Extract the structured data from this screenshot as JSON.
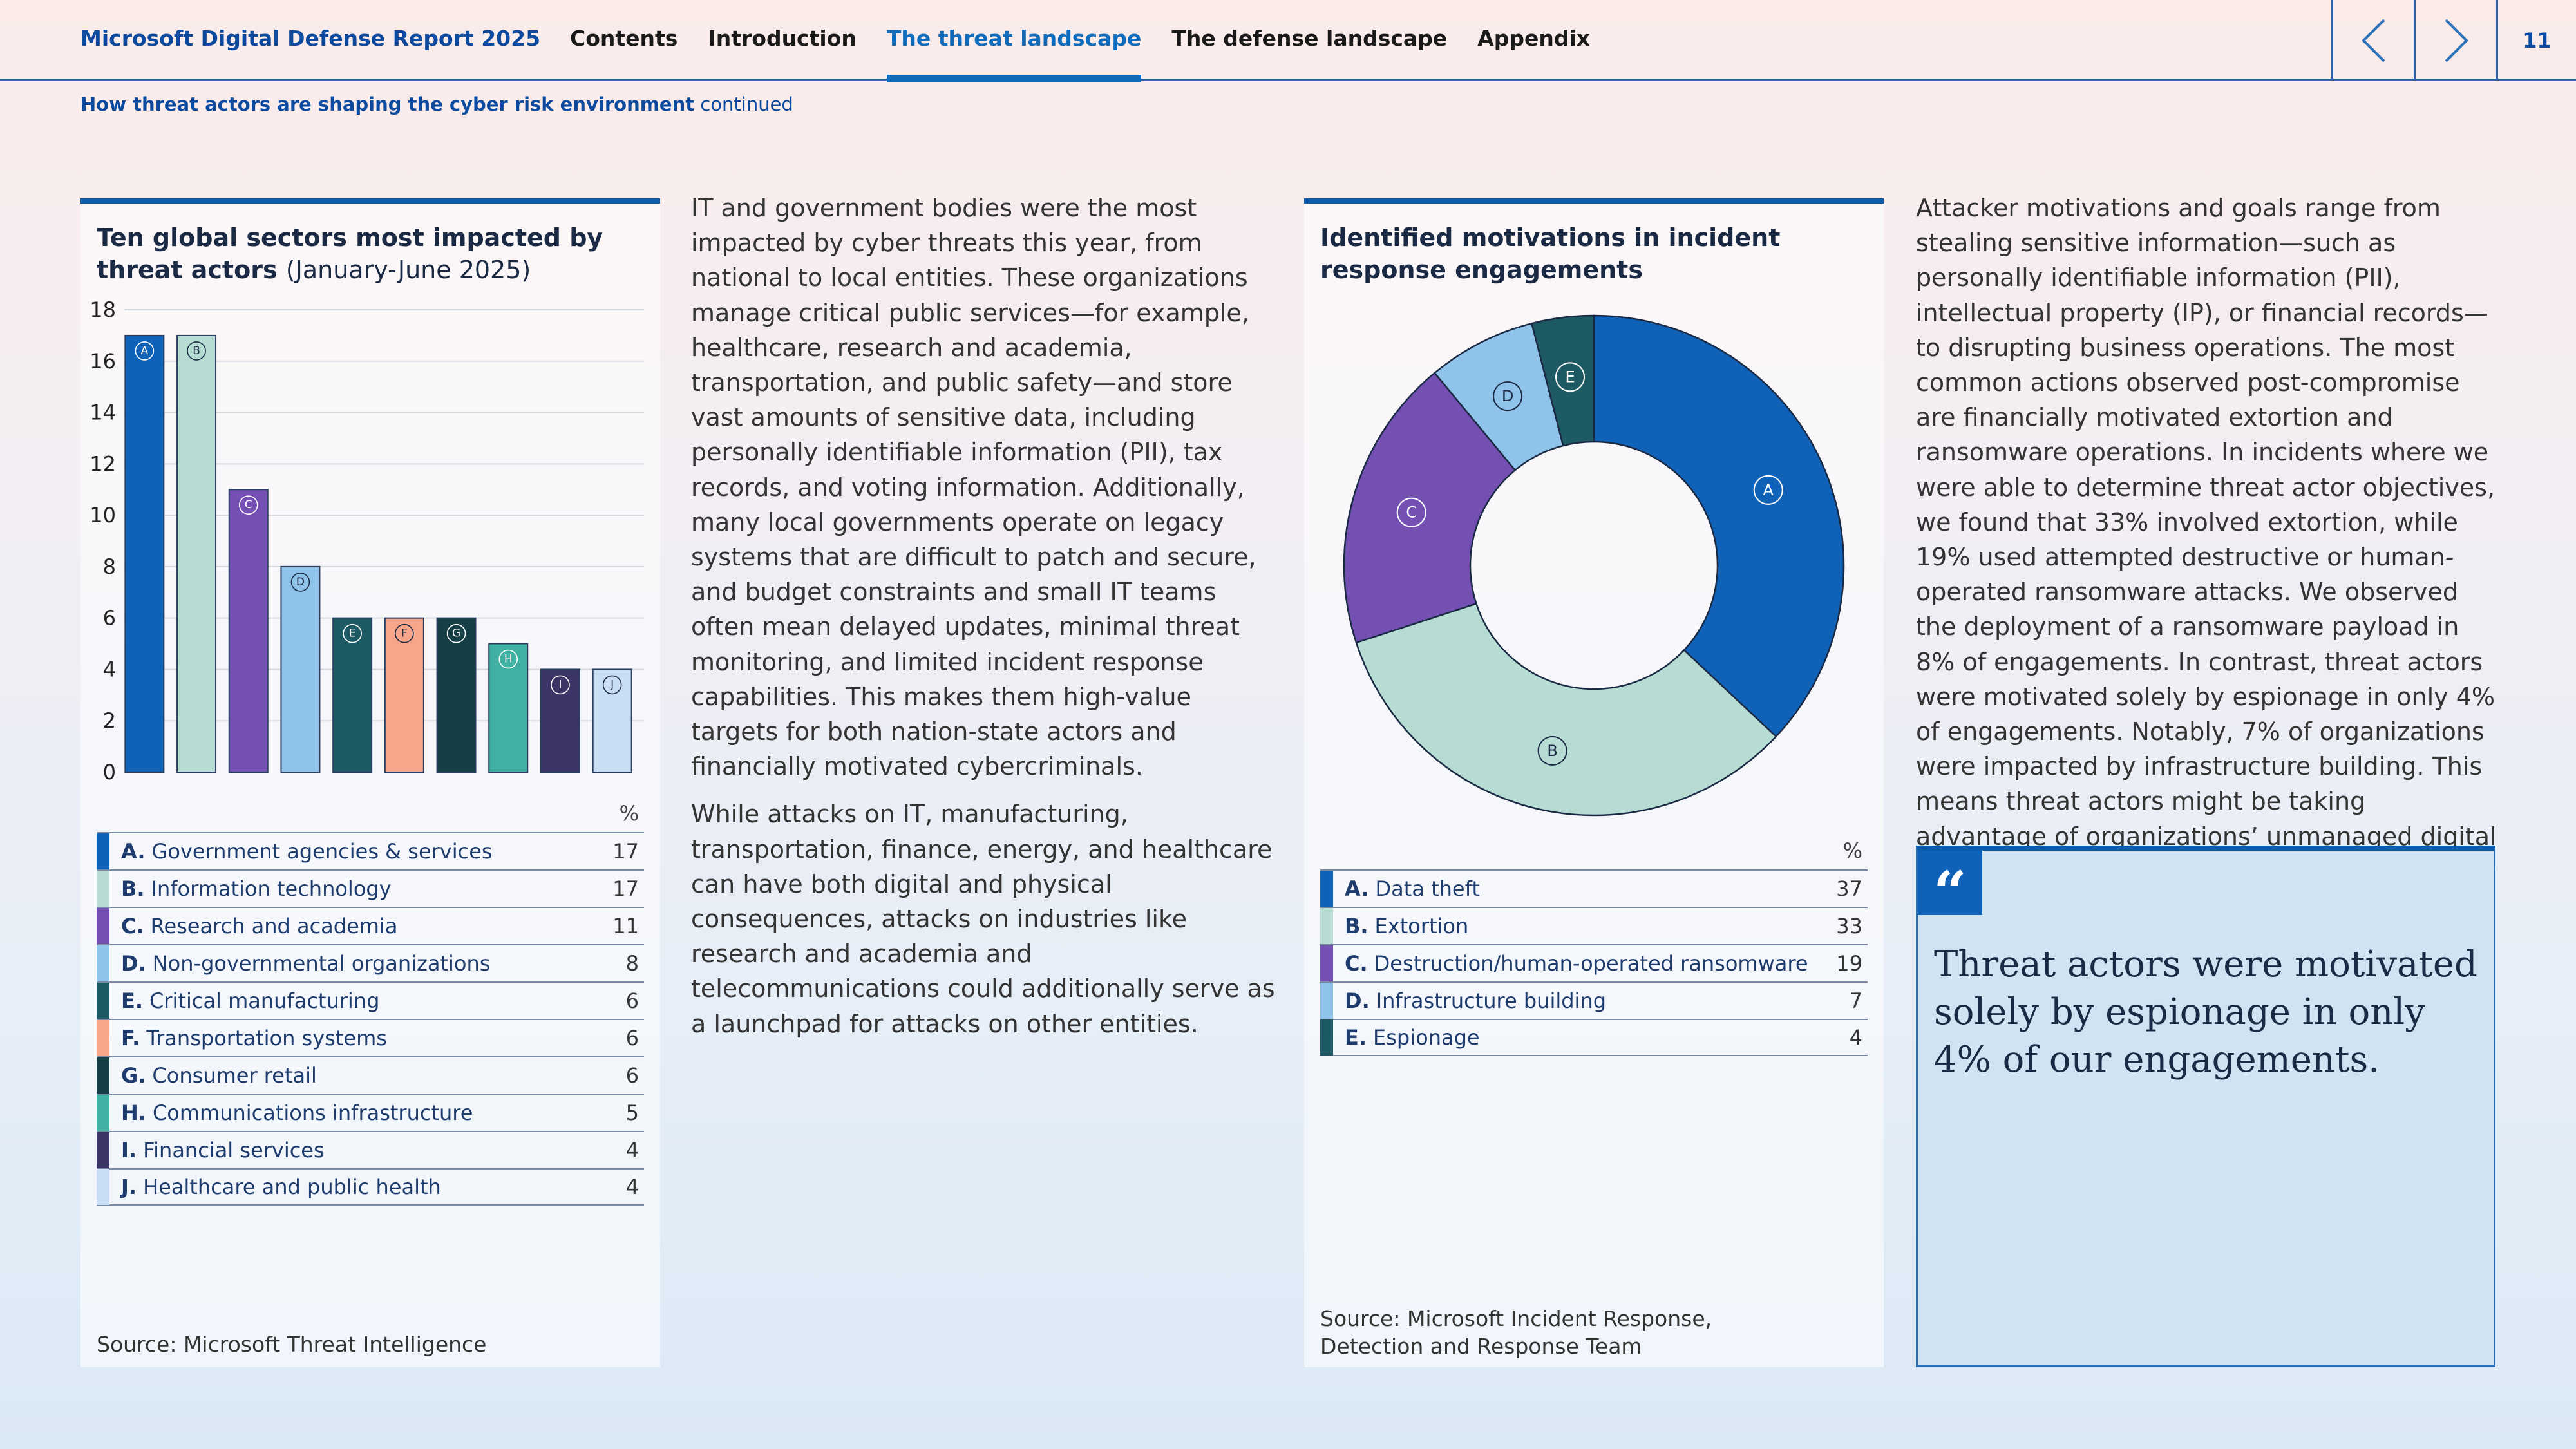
{
  "header": {
    "report_title": "Microsoft Digital Defense Report 2025",
    "nav": [
      {
        "label": "Contents",
        "active": false
      },
      {
        "label": "Introduction",
        "active": false
      },
      {
        "label": "The threat landscape",
        "active": true
      },
      {
        "label": "The defense landscape",
        "active": false
      },
      {
        "label": "Appendix",
        "active": false
      }
    ],
    "prev_icon": "chevron-left-icon",
    "next_icon": "chevron-right-icon",
    "page_number": "11"
  },
  "subheader": {
    "title": "How threat actors are shaping the cyber risk environment",
    "suffix": "continued"
  },
  "sectors_panel": {
    "title": "Ten global sectors most impacted by threat actors",
    "title_suffix": "(January-June 2025)",
    "unit_header": "%",
    "source": "Source: Microsoft Threat Intelligence"
  },
  "motivations_panel": {
    "title": "Identified motivations in incident response engagements",
    "unit_header": "%",
    "source_line1": "Source: Microsoft Incident Response,",
    "source_line2": "Detection and Response Team"
  },
  "chart_data": [
    {
      "type": "bar",
      "title": "Ten global sectors most impacted by threat actors (January-June 2025)",
      "ylim": [
        0,
        18
      ],
      "yticks": [
        0,
        2,
        4,
        6,
        8,
        10,
        12,
        14,
        16,
        18
      ],
      "grid": true,
      "categories": [
        "A",
        "B",
        "C",
        "D",
        "E",
        "F",
        "G",
        "H",
        "I",
        "J"
      ],
      "labels": [
        "Government agencies & services",
        "Information technology",
        "Research and academia",
        "Non-governmental organizations",
        "Critical manufacturing",
        "Transportation systems",
        "Consumer retail",
        "Communications infrastructure",
        "Financial services",
        "Healthcare and public health"
      ],
      "values": [
        17,
        17,
        11,
        8,
        6,
        6,
        6,
        5,
        4,
        4
      ],
      "colors": [
        "#0f62b8",
        "#b7dcd3",
        "#7450b3",
        "#8fc3ea",
        "#1e5a63",
        "#f7a58b",
        "#153f45",
        "#3fb0a2",
        "#3b3466",
        "#c9def2"
      ]
    },
    {
      "type": "pie",
      "title": "Identified motivations in incident response engagements",
      "categories": [
        "A",
        "B",
        "C",
        "D",
        "E"
      ],
      "labels": [
        "Data theft",
        "Extortion",
        "Destruction/human-operated ransomware",
        "Infrastructure building",
        "Espionage"
      ],
      "values": [
        37,
        33,
        19,
        7,
        4
      ],
      "colors": [
        "#0f62b8",
        "#b7dcd3",
        "#7450b3",
        "#8fc3ea",
        "#1e5a63"
      ]
    }
  ],
  "column1": {
    "p1": "IT and government bodies were the most impacted by cyber threats this year, from national to local entities. These organizations manage critical public services—for example, healthcare, research and academia, transportation, and public safety—and store vast amounts of sensitive data, including personally identifiable information (PII), tax records, and voting information. Additionally, many local governments operate on legacy systems that are difficult to patch and secure, and budget constraints and small IT teams often mean delayed updates, minimal threat monitoring, and limited incident response capabilities. This makes them high-value targets for both nation-state actors and financially motivated cybercriminals.",
    "p2": "While attacks on IT, manufacturing, transportation, finance, energy, and healthcare can have both digital and physical consequences, attacks on industries like research and academia and telecommunications could additionally serve as a launchpad for attacks on other entities."
  },
  "column2": {
    "p1": "Attacker motivations and goals range from stealing sensitive information—such as personally identifiable information (PII), intellectual property (IP), or financial records—to disrupting business operations. The most common actions observed post-compromise are financially motivated extortion and ransomware operations. In incidents where we were able to determine threat actor objectives, we found that 33% involved extortion, while 19% used attempted destructive or human-operated ransomware attacks. We observed the deployment of a ransomware payload in 8% of engagements. In contrast, threat actors were motivated solely by espionage in only 4% of engagements. Notably, 7% of organizations were impacted by infrastructure building. This means threat actors might be taking advantage of organizations’ unmanaged digital assets to stage attacks against other third-party targets downstream."
  },
  "quote": {
    "mark": "“",
    "text": "Threat actors were motivated solely by espionage in only 4% of our engagements."
  }
}
